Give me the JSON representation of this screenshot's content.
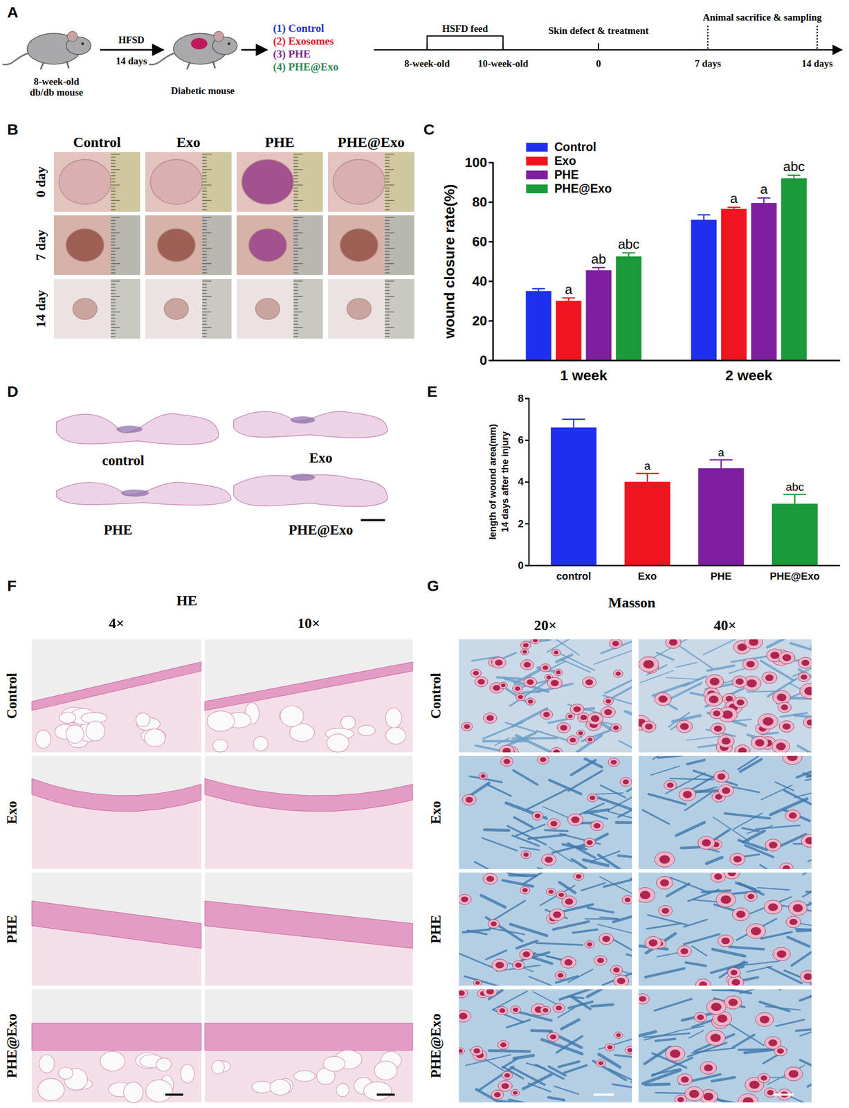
{
  "panel_letters": [
    "A",
    "B",
    "C",
    "D",
    "E",
    "F",
    "G"
  ],
  "schematic": {
    "mouse_label": [
      "8-week-old",
      "db/db mouse"
    ],
    "arrow_top": "HFSD",
    "arrow_bottom": "14 days",
    "diabetic_label": "Diabetic mouse",
    "treatments": [
      {
        "label": "(1) Control",
        "color": "#2233cc"
      },
      {
        "label": "(2) Exosomes",
        "color": "#e8182c"
      },
      {
        "label": "(3) PHE",
        "color": "#7a2a8c"
      },
      {
        "label": "(4) PHE@Exo",
        "color": "#2e8b57"
      }
    ],
    "timeline": {
      "feed": "HSFD feed",
      "surgery": "Skin defect & treatment",
      "sampling": "Animal sacrifice & sampling",
      "ticks": [
        "8-week-old",
        "10-week-old",
        "0",
        "7 days",
        "14 days"
      ]
    }
  },
  "photos": {
    "columns": [
      "Control",
      "Exo",
      "PHE",
      "PHE@Exo"
    ],
    "rows": [
      "0 day",
      "7 day",
      "14 day"
    ]
  },
  "sections": {
    "labels": [
      "control",
      "Exo",
      "PHE",
      "PHE@Exo"
    ]
  },
  "he": {
    "title": "HE",
    "magnifications": [
      "4×",
      "10×"
    ],
    "rows": [
      "Control",
      "Exo",
      "PHE",
      "PHE@Exo"
    ]
  },
  "masson": {
    "title": "Masson",
    "magnifications": [
      "20×",
      "40×"
    ],
    "rows": [
      "Control",
      "Exo",
      "PHE",
      "PHE@Exo"
    ]
  },
  "chart_data": [
    {
      "type": "bar",
      "categories": [
        "1 week",
        "2 week"
      ],
      "y_label": "wound closure rate(%)",
      "ylim": [
        0,
        100
      ],
      "yticks": [
        0,
        20,
        40,
        60,
        80,
        100
      ],
      "legend": "top-left",
      "series": [
        {
          "name": "Control",
          "color": "#1f2ff0",
          "values": [
            35,
            71
          ],
          "errors": [
            1.2,
            2.5
          ],
          "annotations": [
            null,
            null
          ]
        },
        {
          "name": "Exo",
          "color": "#f0141e",
          "values": [
            30,
            76.5
          ],
          "errors": [
            1.5,
            0.8
          ],
          "annotations": [
            "a",
            "a"
          ]
        },
        {
          "name": "PHE",
          "color": "#7e1fa0",
          "values": [
            45.5,
            79.5
          ],
          "errors": [
            1.3,
            2.5
          ],
          "annotations": [
            "ab",
            "a"
          ]
        },
        {
          "name": "PHE@Exo",
          "color": "#1a9a3a",
          "values": [
            52.5,
            92
          ],
          "errors": [
            1.8,
            1.5
          ],
          "annotations": [
            "abc",
            "abc"
          ]
        }
      ]
    },
    {
      "type": "bar",
      "categories": [
        "control",
        "Exo",
        "PHE",
        "PHE@Exo"
      ],
      "y_label": [
        "length of wound area(mm)",
        "14 days after the injury"
      ],
      "values": [
        6.6,
        4.0,
        4.65,
        2.95
      ],
      "errors": [
        0.4,
        0.4,
        0.4,
        0.45
      ],
      "colors": [
        "#1f2ff0",
        "#f0141e",
        "#7e1fa0",
        "#1a9a3a"
      ],
      "annotations": [
        null,
        "a",
        "a",
        "abc"
      ],
      "ylim": [
        0,
        8
      ],
      "yticks": [
        0,
        2,
        4,
        6,
        8
      ]
    }
  ]
}
